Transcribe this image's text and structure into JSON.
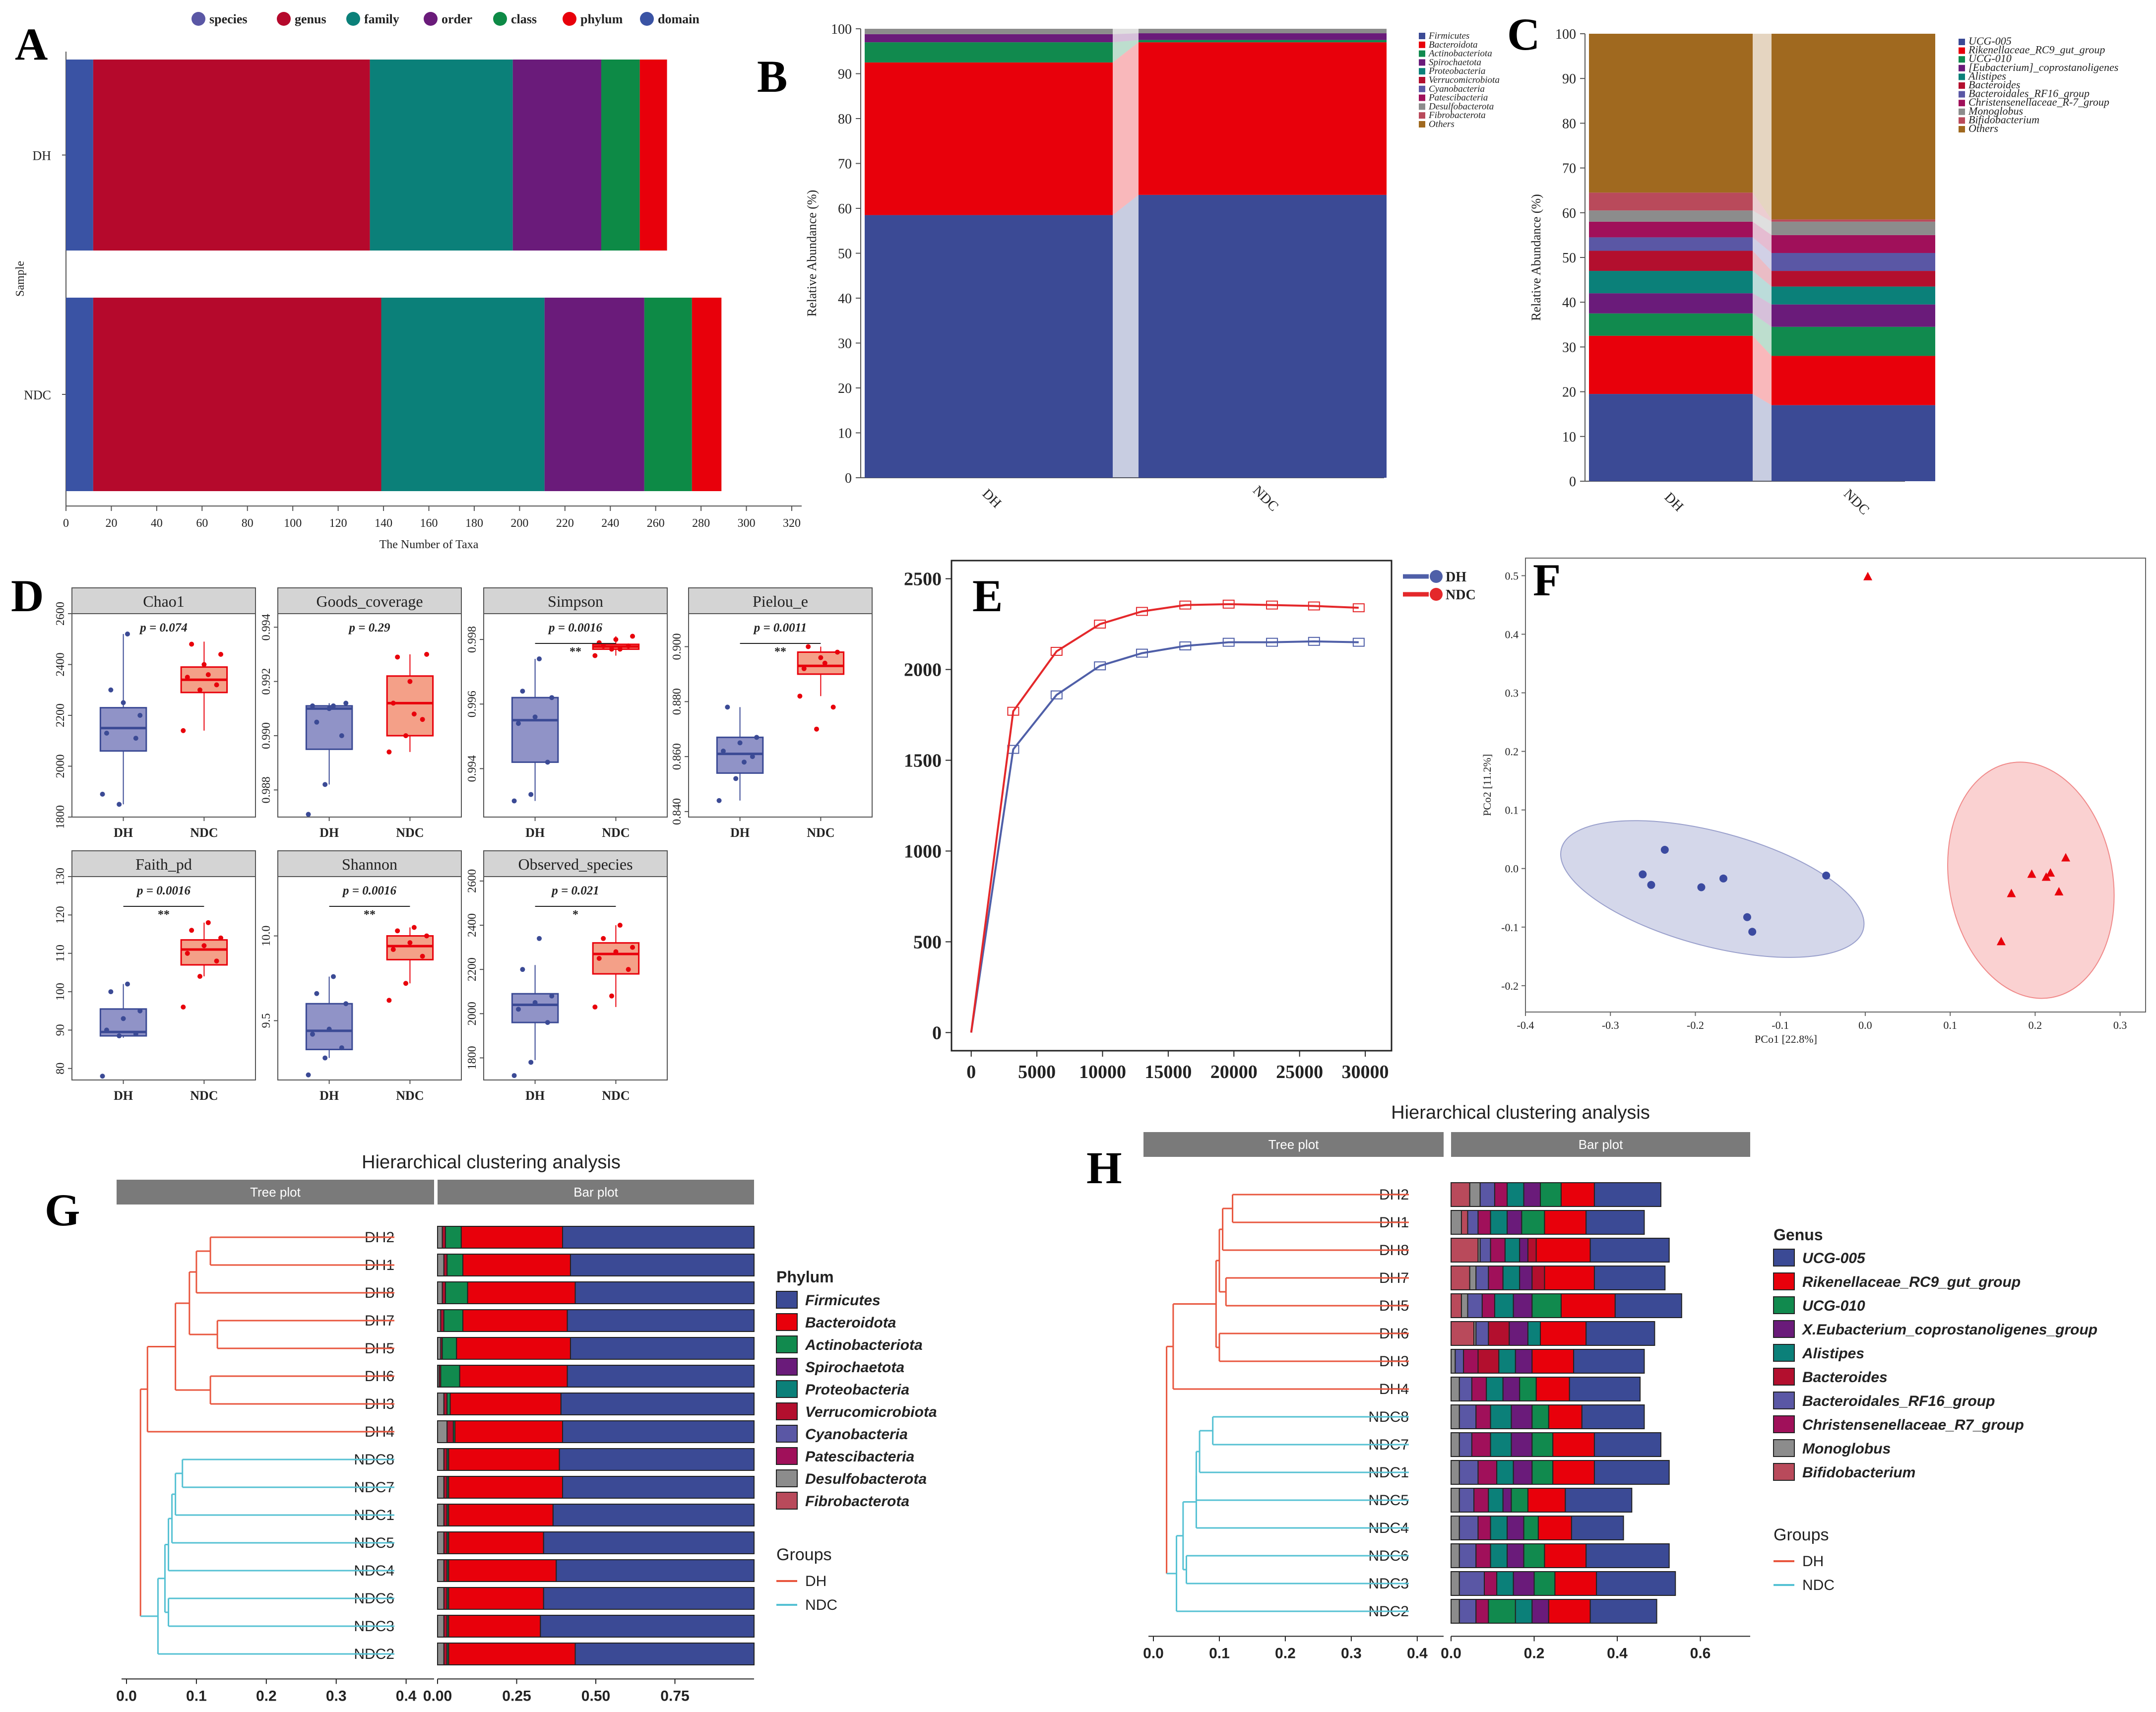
{
  "colors": {
    "blue": "#3b4a95",
    "red": "#e8000b",
    "green": "#118a4e",
    "purple": "#6a1b7a",
    "teal": "#0b8079",
    "crimson": "#b30f2e",
    "lavender": "#5a57a5",
    "magenta": "#a0105a",
    "gray": "#8c8c8c",
    "rose": "#b94a5b",
    "brown": "#a0691f",
    "dhLine": "#e8563e",
    "ndcLine": "#55c1d3",
    "dhBox": "#6b6fb4",
    "ndcBox": "#f08060"
  },
  "panel_labels": [
    "A",
    "B",
    "C",
    "D",
    "E",
    "F",
    "G",
    "H"
  ],
  "chart_data": [
    {
      "id": "A",
      "type": "bar",
      "orientation": "horizontal",
      "stacked": true,
      "legend": [
        "species",
        "genus",
        "family",
        "order",
        "class",
        "phylum",
        "domain"
      ],
      "categories": [
        "DH",
        "NDC"
      ],
      "segments": {
        "DH": [
          [
            "domain",
            12
          ],
          [
            "genus",
            122
          ],
          [
            "family",
            63
          ],
          [
            "order",
            39
          ],
          [
            "class",
            17
          ],
          [
            "phylum",
            12
          ]
        ],
        "NDC": [
          [
            "domain",
            12
          ],
          [
            "genus",
            127
          ],
          [
            "family",
            72
          ],
          [
            "order",
            44
          ],
          [
            "class",
            21
          ],
          [
            "phylum",
            13
          ]
        ]
      },
      "xlabel": "The Number of Taxa",
      "ylabel": "Sample",
      "xlim": [
        0,
        320
      ],
      "xticks": [
        0,
        20,
        40,
        60,
        80,
        100,
        120,
        140,
        160,
        180,
        200,
        220,
        240,
        260,
        280,
        300,
        320
      ]
    },
    {
      "id": "B",
      "type": "bar",
      "stacked": true,
      "categories": [
        "DH",
        "NDC"
      ],
      "legend": [
        "Firmicutes",
        "Bacteroidota",
        "Actinobacteriota",
        "Spirochaetota",
        "Proteobacteria",
        "Verrucomicrobiota",
        "Cyanobacteria",
        "Patescibacteria",
        "Desulfobacterota",
        "Fibrobacterota",
        "Others"
      ],
      "series": [
        {
          "name": "Firmicutes",
          "values": [
            58.5,
            63
          ]
        },
        {
          "name": "Bacteroidota",
          "values": [
            34,
            34
          ]
        },
        {
          "name": "Actinobacteriota",
          "values": [
            4.5,
            0.5
          ]
        },
        {
          "name": "Spirochaetota",
          "values": [
            1.8,
            1.5
          ]
        },
        {
          "name": "Others",
          "values": [
            1.2,
            1.0
          ]
        }
      ],
      "ylabel": "Relative Abundance (%)",
      "ylim": [
        0,
        100
      ],
      "yticks": [
        0,
        10,
        20,
        30,
        40,
        50,
        60,
        70,
        80,
        90,
        100
      ]
    },
    {
      "id": "C",
      "type": "bar",
      "stacked": true,
      "categories": [
        "DH",
        "NDC"
      ],
      "legend": [
        "UCG-005",
        "Rikenellaceae_RC9_gut_group",
        "UCG-010",
        "[Eubacterium]_coprostanoligenes",
        "Alistipes",
        "Bacteroides",
        "Bacteroidales_RF16_group",
        "Christensenellaceae_R-7_group",
        "Monoglobus",
        "Bifidobacterium",
        "Others"
      ],
      "series": [
        {
          "name": "UCG-005",
          "values": [
            19.5,
            17
          ]
        },
        {
          "name": "Rikenellaceae_RC9_gut_group",
          "values": [
            13,
            11
          ]
        },
        {
          "name": "UCG-010",
          "values": [
            5,
            6.5
          ]
        },
        {
          "name": "[Eubacterium]_coprostanoligenes",
          "values": [
            4.5,
            5
          ]
        },
        {
          "name": "Alistipes",
          "values": [
            5,
            4
          ]
        },
        {
          "name": "Bacteroides",
          "values": [
            4.5,
            3.5
          ]
        },
        {
          "name": "Bacteroidales_RF16_group",
          "values": [
            3,
            4
          ]
        },
        {
          "name": "Christensenellaceae_R-7_group",
          "values": [
            3.5,
            4
          ]
        },
        {
          "name": "Monoglobus",
          "values": [
            2.5,
            3
          ]
        },
        {
          "name": "Bifidobacterium",
          "values": [
            4,
            0.5
          ]
        },
        {
          "name": "Others",
          "values": [
            35.5,
            41.5
          ]
        }
      ],
      "ylabel": "Relative Abundance (%)",
      "ylim": [
        0,
        100
      ],
      "yticks": [
        0,
        10,
        20,
        30,
        40,
        50,
        60,
        70,
        80,
        90,
        100
      ]
    },
    {
      "id": "D",
      "type": "box",
      "panels": [
        {
          "title": "Chao1",
          "p": "p = 0.074",
          "sig": "",
          "ylim": [
            1800,
            2600
          ],
          "ticks": [
            1800,
            2000,
            2200,
            2400,
            2600
          ],
          "DH": {
            "q1": 2060,
            "med": 2150,
            "q3": 2230,
            "lo": 1850,
            "hi": 2520,
            "pts": [
              1890,
              1850,
              2110,
              2130,
              2250,
              2200,
              2300,
              2520
            ]
          },
          "NDC": {
            "q1": 2290,
            "med": 2340,
            "q3": 2390,
            "lo": 2140,
            "hi": 2490,
            "pts": [
              2140,
              2300,
              2320,
              2350,
              2400,
              2440,
              2480,
              2360
            ]
          }
        },
        {
          "title": "Goods_coverage",
          "p": "p = 0.29",
          "sig": "",
          "ylim": [
            0.987,
            0.9945
          ],
          "ticks": [
            0.988,
            0.99,
            0.992,
            0.994
          ],
          "DH": {
            "q1": 0.9895,
            "med": 0.991,
            "q3": 0.9911,
            "lo": 0.9882,
            "hi": 0.9912,
            "pts": [
              0.9871,
              0.9882,
              0.99,
              0.9911,
              0.991,
              0.9912,
              0.9905,
              0.9911
            ]
          },
          "NDC": {
            "q1": 0.99,
            "med": 0.9912,
            "q3": 0.9922,
            "lo": 0.9894,
            "hi": 0.993,
            "pts": [
              0.9894,
              0.99,
              0.9906,
              0.9912,
              0.992,
              0.993,
              0.9929,
              0.9908
            ]
          }
        },
        {
          "title": "Simpson",
          "p": "p = 0.0016",
          "sig": "**",
          "ylim": [
            0.9925,
            0.9988
          ],
          "ticks": [
            0.994,
            0.996,
            0.998
          ],
          "DH": {
            "q1": 0.9942,
            "med": 0.9955,
            "q3": 0.9962,
            "lo": 0.993,
            "hi": 0.9974,
            "pts": [
              0.993,
              0.9932,
              0.9942,
              0.9954,
              0.9956,
              0.9962,
              0.9964,
              0.9974
            ]
          },
          "NDC": {
            "q1": 0.9977,
            "med": 0.99778,
            "q3": 0.99785,
            "lo": 0.9975,
            "hi": 0.9981,
            "pts": [
              0.9975,
              0.9977,
              0.9978,
              0.9979,
              0.998,
              0.9981,
              0.9978,
              0.9977
            ]
          }
        },
        {
          "title": "Pielou_e",
          "p": "p = 0.0011",
          "sig": "**",
          "ylim": [
            0.838,
            0.912
          ],
          "ticks": [
            0.84,
            0.86,
            0.88,
            0.9
          ],
          "DH": {
            "q1": 0.854,
            "med": 0.861,
            "q3": 0.867,
            "lo": 0.844,
            "hi": 0.878,
            "pts": [
              0.844,
              0.852,
              0.86,
              0.862,
              0.865,
              0.867,
              0.878,
              0.858
            ]
          },
          "NDC": {
            "q1": 0.89,
            "med": 0.893,
            "q3": 0.898,
            "lo": 0.882,
            "hi": 0.9,
            "pts": [
              0.882,
              0.87,
              0.878,
              0.892,
              0.896,
              0.898,
              0.9,
              0.894
            ]
          }
        },
        {
          "title": "Faith_pd",
          "p": "p = 0.0016",
          "sig": "**",
          "ylim": [
            77,
            130
          ],
          "ticks": [
            80,
            90,
            100,
            110,
            120,
            130
          ],
          "DH": {
            "q1": 88.5,
            "med": 89.5,
            "q3": 95.5,
            "lo": 88,
            "hi": 102,
            "pts": [
              78,
              88.5,
              89,
              90,
              93,
              95,
              100,
              102
            ]
          },
          "NDC": {
            "q1": 107,
            "med": 111,
            "q3": 113.5,
            "lo": 104,
            "hi": 118,
            "pts": [
              96,
              104,
              108,
              110,
              112,
              114,
              116,
              118
            ]
          }
        },
        {
          "title": "Shannon",
          "p": "p = 0.0016",
          "sig": "**",
          "ylim": [
            9.15,
            10.35
          ],
          "ticks": [
            9.5,
            10.0
          ],
          "DH": {
            "q1": 9.33,
            "med": 9.44,
            "q3": 9.6,
            "lo": 9.28,
            "hi": 9.76,
            "pts": [
              9.18,
              9.28,
              9.34,
              9.42,
              9.45,
              9.6,
              9.66,
              9.76
            ]
          },
          "NDC": {
            "q1": 9.86,
            "med": 9.94,
            "q3": 10.0,
            "lo": 9.72,
            "hi": 10.05,
            "pts": [
              9.62,
              9.72,
              9.88,
              9.92,
              9.96,
              10.0,
              10.03,
              10.05
            ]
          }
        },
        {
          "title": "Observed_species",
          "p": "p = 0.021",
          "sig": "*",
          "ylim": [
            1700,
            2620
          ],
          "ticks": [
            1800,
            2000,
            2200,
            2400,
            2600
          ],
          "DH": {
            "q1": 1960,
            "med": 2040,
            "q3": 2090,
            "lo": 1790,
            "hi": 2220,
            "pts": [
              1720,
              1780,
              1960,
              2020,
              2050,
              2080,
              2200,
              2340
            ]
          },
          "NDC": {
            "q1": 2180,
            "med": 2270,
            "q3": 2320,
            "lo": 2030,
            "hi": 2400,
            "pts": [
              2030,
              2080,
              2200,
              2250,
              2280,
              2300,
              2340,
              2400
            ]
          }
        }
      ]
    },
    {
      "id": "E",
      "type": "line",
      "legend": [
        "DH",
        "NDC"
      ],
      "x": [
        0,
        3200,
        6500,
        9800,
        13000,
        16300,
        19600,
        22900,
        26100,
        29500
      ],
      "series": [
        {
          "name": "DH",
          "values": [
            0,
            1560,
            1860,
            2020,
            2090,
            2130,
            2150,
            2150,
            2155,
            2150
          ]
        },
        {
          "name": "NDC",
          "values": [
            0,
            1770,
            2100,
            2250,
            2320,
            2355,
            2360,
            2355,
            2350,
            2340
          ]
        }
      ],
      "xticks": [
        0,
        5000,
        10000,
        15000,
        20000,
        25000,
        30000
      ],
      "yticks": [
        0,
        500,
        1000,
        1500,
        2000,
        2500
      ],
      "xlim": [
        -1500,
        32000
      ],
      "ylim": [
        -100,
        2600
      ]
    },
    {
      "id": "F",
      "type": "scatter",
      "xlabel": "PCo1 [22.8%]",
      "ylabel": "PCo2 [11.2%]",
      "xlim": [
        -0.4,
        0.33
      ],
      "ylim": [
        -0.245,
        0.53
      ],
      "xticks": [
        -0.4,
        -0.3,
        -0.2,
        -0.1,
        0.0,
        0.1,
        0.2,
        0.3
      ],
      "yticks": [
        -0.2,
        -0.1,
        0.0,
        0.1,
        0.2,
        0.3,
        0.4,
        0.5
      ],
      "series": [
        {
          "name": "DH",
          "points": [
            [
              -0.236,
              0.032
            ],
            [
              -0.262,
              -0.01
            ],
            [
              -0.252,
              -0.028
            ],
            [
              -0.193,
              -0.032
            ],
            [
              -0.167,
              -0.017
            ],
            [
              -0.139,
              -0.083
            ],
            [
              -0.133,
              -0.108
            ],
            [
              -0.046,
              -0.012
            ]
          ]
        },
        {
          "name": "NDC",
          "points": [
            [
              0.003,
              0.498
            ],
            [
              0.172,
              -0.043
            ],
            [
              0.196,
              -0.01
            ],
            [
              0.213,
              -0.015
            ],
            [
              0.218,
              -0.008
            ],
            [
              0.228,
              -0.04
            ],
            [
              0.236,
              0.018
            ],
            [
              0.16,
              -0.125
            ]
          ]
        }
      ]
    },
    {
      "id": "G",
      "type": "bar",
      "stacked": true,
      "orientation": "horizontal",
      "title": "Hierarchical clustering analysis",
      "strip_tree": "Tree plot",
      "strip_bar": "Bar plot",
      "legend_title": "Phylum",
      "legend": [
        "Firmicutes",
        "Bacteroidota",
        "Actinobacteriota",
        "Spirochaetota",
        "Proteobacteria",
        "Verrucomicrobiota",
        "Cyanobacteria",
        "Patescibacteria",
        "Desulfobacterota",
        "Fibrobacterota"
      ],
      "groups_title": "Groups",
      "groups": [
        "DH",
        "NDC"
      ],
      "samples": [
        "DH2",
        "DH1",
        "DH8",
        "DH7",
        "DH5",
        "DH6",
        "DH3",
        "DH4",
        "NDC8",
        "NDC7",
        "NDC1",
        "NDC5",
        "NDC4",
        "NDC6",
        "NDC3",
        "NDC2"
      ],
      "rows": [
        [
          0.015,
          0.01,
          0.05,
          0.32
        ],
        [
          0.02,
          0.01,
          0.05,
          0.34
        ],
        [
          0.015,
          0.01,
          0.07,
          0.34
        ],
        [
          0.01,
          0.01,
          0.06,
          0.33
        ],
        [
          0.01,
          0.005,
          0.045,
          0.36
        ],
        [
          0.005,
          0.005,
          0.06,
          0.34
        ],
        [
          0.02,
          0.01,
          0.01,
          0.35
        ],
        [
          0.03,
          0.02,
          0.005,
          0.34
        ],
        [
          0.02,
          0.01,
          0.005,
          0.35
        ],
        [
          0.02,
          0.01,
          0.005,
          0.36
        ],
        [
          0.02,
          0.01,
          0.005,
          0.33
        ],
        [
          0.02,
          0.01,
          0.005,
          0.3
        ],
        [
          0.02,
          0.01,
          0.005,
          0.34
        ],
        [
          0.02,
          0.01,
          0.005,
          0.3
        ],
        [
          0.02,
          0.01,
          0.005,
          0.29
        ],
        [
          0.02,
          0.01,
          0.005,
          0.4
        ]
      ],
      "xticks": [
        "0.00",
        "0.25",
        "0.50",
        "0.75"
      ],
      "tree_ticks": [
        "0.0",
        "0.1",
        "0.2",
        "0.3",
        "0.4"
      ]
    },
    {
      "id": "H",
      "type": "bar",
      "stacked": true,
      "orientation": "horizontal",
      "title": "Hierarchical clustering analysis",
      "strip_tree": "Tree plot",
      "strip_bar": "Bar plot",
      "legend_title": "Genus",
      "legend": [
        "UCG-005",
        "Rikenellaceae_RC9_gut_group",
        "UCG-010",
        "X.Eubacterium_coprostanoligenes_group",
        "Alistipes",
        "Bacteroides",
        "Bacteroidales_RF16_group",
        "Christensenellaceae_R7_group",
        "Monoglobus",
        "Bifidobacterium"
      ],
      "groups_title": "Groups",
      "groups": [
        "DH",
        "NDC"
      ],
      "samples": [
        "DH2",
        "DH1",
        "DH8",
        "DH7",
        "DH5",
        "DH6",
        "DH3",
        "DH4",
        "NDC8",
        "NDC7",
        "NDC1",
        "NDC5",
        "NDC4",
        "NDC6",
        "NDC3",
        "NDC2"
      ],
      "xticks": [
        "0.0",
        "0.2",
        "0.4",
        "0.6"
      ],
      "tree_ticks": [
        "0.0",
        "0.1",
        "0.2",
        "0.3",
        "0.4"
      ]
    }
  ]
}
